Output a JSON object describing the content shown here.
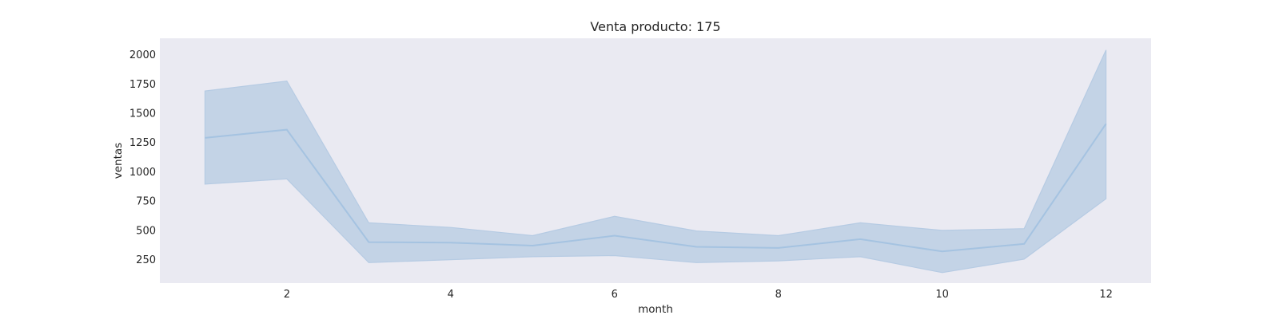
{
  "chart_data": {
    "type": "line",
    "title": "Venta producto: 175",
    "xlabel": "month",
    "ylabel": "ventas",
    "x": [
      1,
      2,
      3,
      4,
      5,
      6,
      7,
      8,
      9,
      10,
      11,
      12
    ],
    "series": [
      {
        "values": [
          1290,
          1360,
          400,
          395,
          370,
          455,
          360,
          350,
          425,
          320,
          385,
          1410
        ],
        "ci_lower": [
          895,
          940,
          225,
          250,
          275,
          285,
          225,
          240,
          275,
          140,
          255,
          770
        ],
        "ci_upper": [
          1690,
          1775,
          565,
          525,
          455,
          620,
          495,
          455,
          565,
          500,
          515,
          2040
        ]
      }
    ],
    "xlim": [
      0.45,
      12.55
    ],
    "ylim": [
      50,
      2140
    ],
    "xticks": [
      2,
      4,
      6,
      8,
      10,
      12
    ],
    "yticks": [
      250,
      500,
      750,
      1000,
      1250,
      1500,
      1750,
      2000
    ],
    "grid": false,
    "colors": {
      "plot_background": "#eaeaf2",
      "line": "#a5c3e1",
      "band_fill": "#c3d3e6",
      "band_edge": "#b6cbe3",
      "text": "#262626"
    }
  }
}
